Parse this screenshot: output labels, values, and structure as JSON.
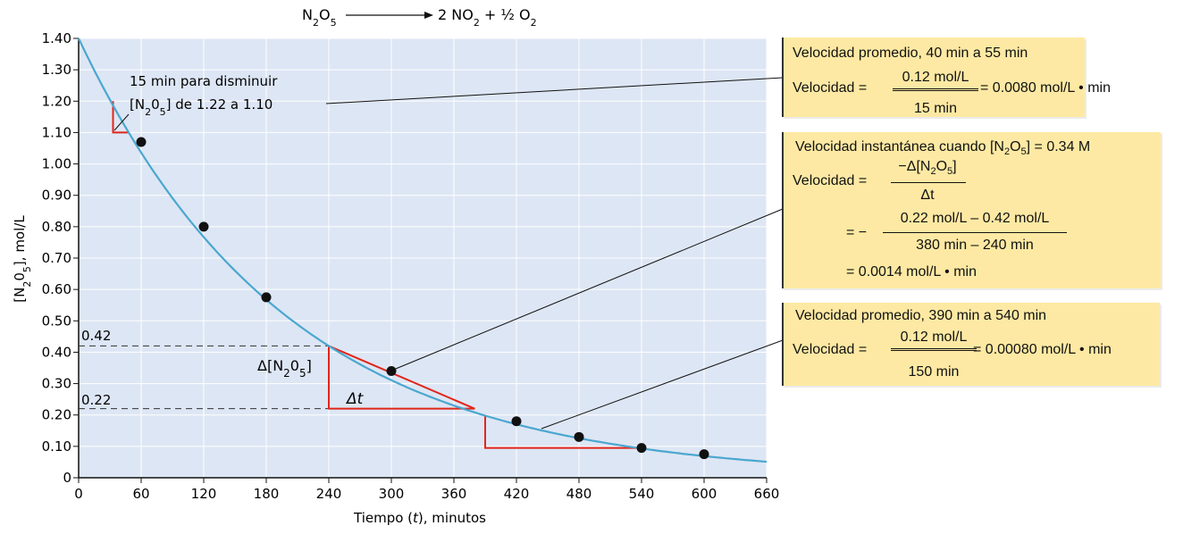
{
  "equation": {
    "left": "N2O5",
    "right_a": "2 NO2",
    "plus": "+",
    "right_b": "½ O2"
  },
  "chart_data": {
    "type": "line",
    "xlabel": "Tiempo (t), minutos",
    "ylabel": "[N2O5], mol/L",
    "xlim": [
      0,
      660
    ],
    "ylim": [
      0,
      1.4
    ],
    "x_ticks": [
      "0",
      "60",
      "120",
      "180",
      "240",
      "300",
      "360",
      "420",
      "480",
      "540",
      "600",
      "660"
    ],
    "y_ticks": [
      "0",
      "0.10",
      "0.20",
      "0.30",
      "0.40",
      "0.50",
      "0.60",
      "0.70",
      "0.80",
      "0.90",
      "1.00",
      "1.10",
      "1.20",
      "1.30",
      "1.40"
    ],
    "curve_color": "#4aa7cf",
    "plot_background": "#dde6f4",
    "triangle_color": "#e0261b",
    "series": [
      {
        "x": [
          60,
          120,
          180,
          300,
          420,
          480,
          540,
          600
        ],
        "y": [
          1.07,
          0.8,
          0.575,
          0.34,
          0.18,
          0.13,
          0.095,
          0.075
        ]
      }
    ],
    "annotations": {
      "small_triangle_note_line1": "15 min para disminuir",
      "small_triangle_note_line2": "[N2O5] de 1.22 a 1.10",
      "dashed_042_label": "0.42",
      "dashed_022_label": "0.22",
      "delta_conc_label": "Δ[N2O5]",
      "delta_t_label": "Δt"
    }
  },
  "boxes": {
    "box1": {
      "title": "Velocidad promedio, 40 min a 55 min",
      "velocidad_label": "Velocidad =",
      "numerator": "0.12 mol/L",
      "denominator": "15 min",
      "result": "= 0.0080 mol/L • min"
    },
    "box2": {
      "title": "Velocidad instantánea  cuando  [N2O5] = 0.34 M",
      "velocidad_label": "Velocidad =",
      "numerator": "−Δ[N2O5]",
      "denominator": "Δt",
      "eq2_prefix": "= −",
      "numerator2": "0.22 mol/L – 0.42 mol/L",
      "denominator2": "380 min – 240 min",
      "result": "= 0.0014 mol/L • min"
    },
    "box3": {
      "title": "Velocidad promedio, 390 min a 540 min",
      "velocidad_label": "Velocidad =",
      "numerator": "0.12 mol/L",
      "denominator": "150  min",
      "result": "= 0.00080 mol/L • min"
    }
  }
}
